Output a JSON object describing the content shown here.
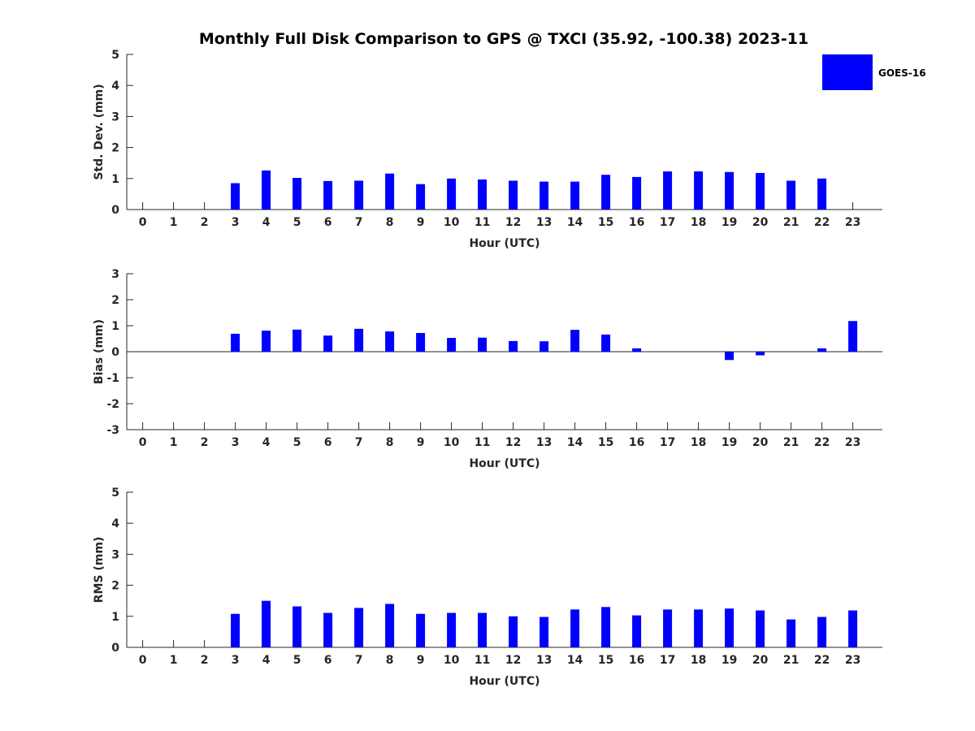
{
  "title": "Monthly Full Disk Comparison to GPS @ TXCI (35.92, -100.38) 2023-11",
  "legend": {
    "label": "GOES-16",
    "color": "#0000ff"
  },
  "chart_data": [
    {
      "type": "bar",
      "xlabel": "Hour (UTC)",
      "ylabel": "Std. Dev. (mm)",
      "ylim": [
        0,
        5
      ],
      "yticks": [
        "0",
        "1",
        "2",
        "3",
        "4",
        "5"
      ],
      "categories": [
        "0",
        "1",
        "2",
        "3",
        "4",
        "5",
        "6",
        "7",
        "8",
        "9",
        "10",
        "11",
        "12",
        "13",
        "14",
        "15",
        "16",
        "17",
        "18",
        "19",
        "20",
        "21",
        "22",
        "23"
      ],
      "series": [
        {
          "name": "GOES-16",
          "values": [
            null,
            null,
            null,
            0.85,
            1.26,
            1.02,
            0.92,
            0.93,
            1.16,
            0.82,
            1.0,
            0.97,
            0.93,
            0.9,
            0.9,
            1.12,
            1.05,
            1.23,
            1.23,
            1.21,
            1.18,
            0.93,
            1.0,
            null
          ]
        }
      ],
      "grid": false
    },
    {
      "type": "bar",
      "xlabel": "Hour (UTC)",
      "ylabel": "Bias (mm)",
      "ylim": [
        -3,
        3
      ],
      "yticks": [
        "-3",
        "-2",
        "-1",
        "0",
        "1",
        "2",
        "3"
      ],
      "categories": [
        "0",
        "1",
        "2",
        "3",
        "4",
        "5",
        "6",
        "7",
        "8",
        "9",
        "10",
        "11",
        "12",
        "13",
        "14",
        "15",
        "16",
        "17",
        "18",
        "19",
        "20",
        "21",
        "22",
        "23"
      ],
      "series": [
        {
          "name": "GOES-16",
          "values": [
            null,
            null,
            null,
            0.69,
            0.81,
            0.85,
            0.62,
            0.88,
            0.78,
            0.72,
            0.53,
            0.54,
            0.41,
            0.4,
            0.84,
            0.66,
            0.13,
            0.0,
            0.0,
            -0.32,
            -0.14,
            0.0,
            0.13,
            1.18
          ]
        }
      ],
      "grid": false
    },
    {
      "type": "bar",
      "xlabel": "Hour (UTC)",
      "ylabel": "RMS (mm)",
      "ylim": [
        0,
        5
      ],
      "yticks": [
        "0",
        "1",
        "2",
        "3",
        "4",
        "5"
      ],
      "categories": [
        "0",
        "1",
        "2",
        "3",
        "4",
        "5",
        "6",
        "7",
        "8",
        "9",
        "10",
        "11",
        "12",
        "13",
        "14",
        "15",
        "16",
        "17",
        "18",
        "19",
        "20",
        "21",
        "22",
        "23"
      ],
      "series": [
        {
          "name": "GOES-16",
          "values": [
            null,
            null,
            null,
            1.08,
            1.5,
            1.32,
            1.11,
            1.27,
            1.4,
            1.08,
            1.11,
            1.11,
            1.0,
            0.98,
            1.22,
            1.3,
            1.03,
            1.22,
            1.22,
            1.25,
            1.19,
            0.9,
            0.98,
            1.19
          ]
        }
      ],
      "grid": false
    }
  ]
}
